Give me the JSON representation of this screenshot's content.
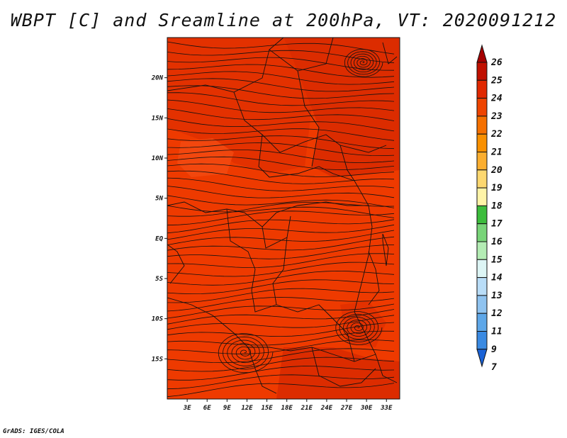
{
  "title": "WBPT [C] and Sreamline at 200hPa, VT: 2020091212",
  "credit": "GrADS: IGES/COLA",
  "map": {
    "lat_labels": [
      "20N",
      "15N",
      "10N",
      "5N",
      "EQ",
      "5S",
      "10S",
      "15S"
    ],
    "lat_values": [
      20,
      15,
      10,
      5,
      0,
      -5,
      -10,
      -15
    ],
    "lon_labels": [
      "3E",
      "6E",
      "9E",
      "12E",
      "15E",
      "18E",
      "21E",
      "24E",
      "27E",
      "30E",
      "33E"
    ],
    "lon_values": [
      3,
      6,
      9,
      12,
      15,
      18,
      21,
      24,
      27,
      30,
      33
    ],
    "lon_range": [
      0,
      35
    ],
    "lat_range": [
      -20,
      25
    ],
    "field_fill": "#ee3a00",
    "field_variants": [
      "#e03000",
      "#d82a00",
      "#f24a10"
    ],
    "line_color": "#111111"
  },
  "colorbar": {
    "labels": [
      "26",
      "25",
      "24",
      "23",
      "22",
      "21",
      "20",
      "19",
      "18",
      "17",
      "16",
      "15",
      "14",
      "13",
      "12",
      "11",
      "9",
      "7"
    ],
    "colors": [
      "#a50000",
      "#c01000",
      "#e02800",
      "#ee4400",
      "#f57000",
      "#f99000",
      "#fbae30",
      "#fdd870",
      "#fef4a8",
      "#3cbc3c",
      "#78d478",
      "#b4ecb4",
      "#ddf5f5",
      "#b9ddf8",
      "#8fc3f0",
      "#5ea7e8",
      "#3a8ae2",
      "#1a62d6"
    ]
  }
}
